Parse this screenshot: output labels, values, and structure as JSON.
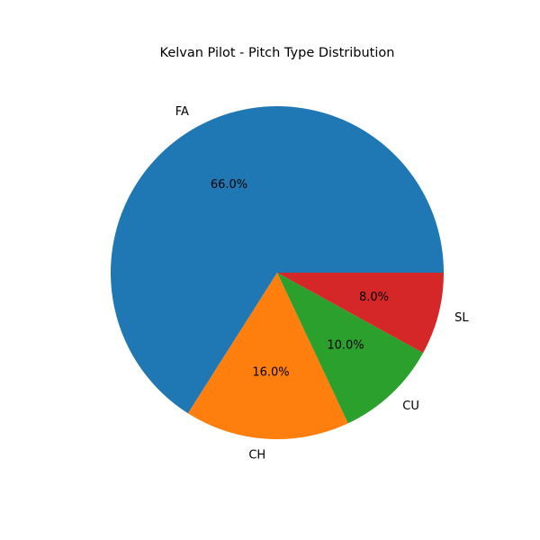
{
  "chart_data": {
    "type": "pie",
    "title": "Kelvan Pilot - Pitch Type Distribution",
    "slices": [
      {
        "label": "FA",
        "value": 66.0,
        "pct_text": "66.0%",
        "color": "#1f77b4"
      },
      {
        "label": "CH",
        "value": 16.0,
        "pct_text": "16.0%",
        "color": "#ff7f0e"
      },
      {
        "label": "CU",
        "value": 10.0,
        "pct_text": "10.0%",
        "color": "#2ca02c"
      },
      {
        "label": "SL",
        "value": 8.0,
        "pct_text": "8.0%",
        "color": "#d62728"
      }
    ],
    "start_angle_deg": 0,
    "direction": "counterclockwise",
    "legend": "none"
  }
}
